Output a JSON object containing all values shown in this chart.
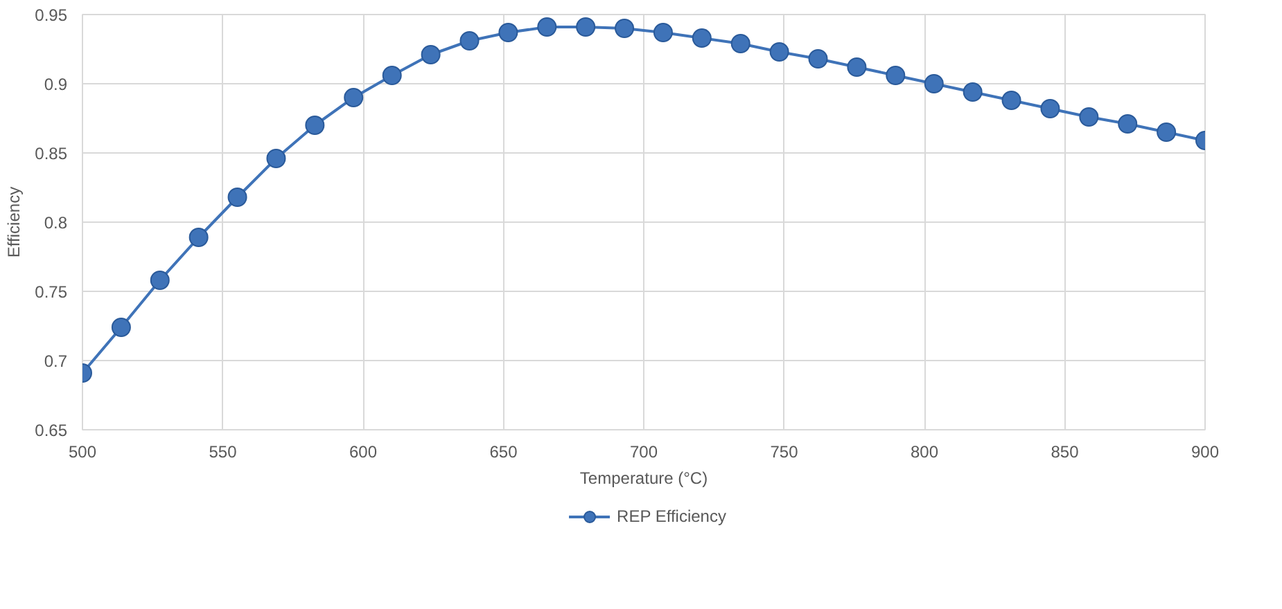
{
  "chart_data": {
    "type": "line",
    "xlabel": "Temperature (°C)",
    "ylabel": "Efficiency",
    "x": [
      500,
      513.8,
      527.6,
      541.4,
      555.2,
      569,
      582.8,
      596.6,
      610.3,
      624.1,
      637.9,
      651.7,
      665.5,
      679.3,
      693.1,
      706.9,
      720.7,
      734.5,
      748.3,
      762.1,
      775.9,
      789.7,
      803.4,
      817.2,
      831,
      844.8,
      858.6,
      872.4,
      886.2,
      900
    ],
    "series": [
      {
        "name": "REP Efficiency",
        "color": "#3f73b8",
        "values": [
          0.691,
          0.724,
          0.758,
          0.789,
          0.818,
          0.846,
          0.87,
          0.89,
          0.906,
          0.921,
          0.931,
          0.937,
          0.941,
          0.941,
          0.94,
          0.937,
          0.933,
          0.929,
          0.923,
          0.918,
          0.912,
          0.906,
          0.9,
          0.894,
          0.888,
          0.882,
          0.876,
          0.871,
          0.865,
          0.859
        ]
      }
    ],
    "xlim": [
      500,
      900
    ],
    "xticks": [
      500,
      550,
      600,
      650,
      700,
      750,
      800,
      850,
      900
    ],
    "ylim": [
      0.65,
      0.95
    ],
    "yticks": [
      0.65,
      0.7,
      0.75,
      0.8,
      0.85,
      0.9,
      0.95
    ],
    "grid": true,
    "legend": "bottom",
    "marker": "circle",
    "line_style": "solid"
  }
}
